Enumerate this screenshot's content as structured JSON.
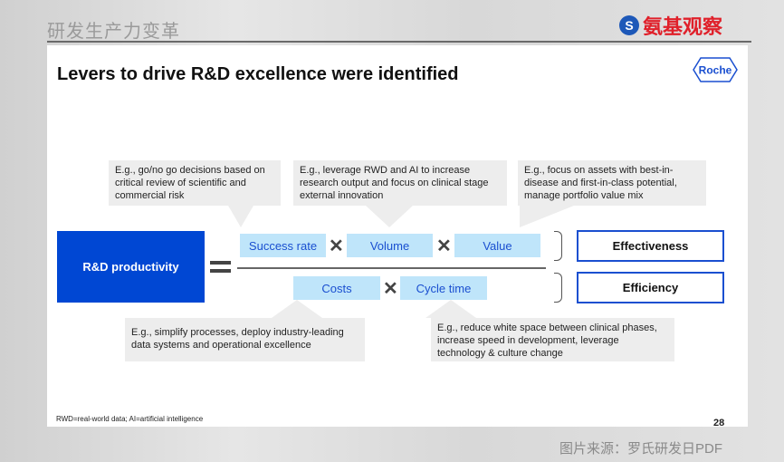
{
  "header": {
    "title": "研发生产力变革",
    "brand": "氨基观察"
  },
  "slide": {
    "title": "Levers to drive R&D excellence were identified",
    "logo": "Roche",
    "callouts_top": [
      "E.g., go/no go decisions based on critical review of scientific and commercial risk",
      "E.g., leverage RWD and AI to increase research output and focus on clinical stage external innovation",
      "E.g., focus on assets with best-in-disease and first-in-class potential, manage portfolio value mix"
    ],
    "callouts_bottom": [
      "E.g., simplify processes, deploy industry-leading data systems and operational excellence",
      "E.g., reduce white space between clinical phases, increase speed in development, leverage technology & culture change"
    ],
    "productivity": "R&D productivity",
    "numerator": [
      "Success rate",
      "Volume",
      "Value"
    ],
    "denominator": [
      "Costs",
      "Cycle time"
    ],
    "times": "✕",
    "results": [
      "Effectiveness",
      "Efficiency"
    ],
    "footnote": "RWD=real-world data; AI=artificial intelligence",
    "page_number": "28"
  },
  "source": "图片来源：罗氏研发日PDF",
  "colors": {
    "primary_blue": "#0047d3",
    "light_blue": "#bfe5fa",
    "accent": "#1a4fd0"
  }
}
